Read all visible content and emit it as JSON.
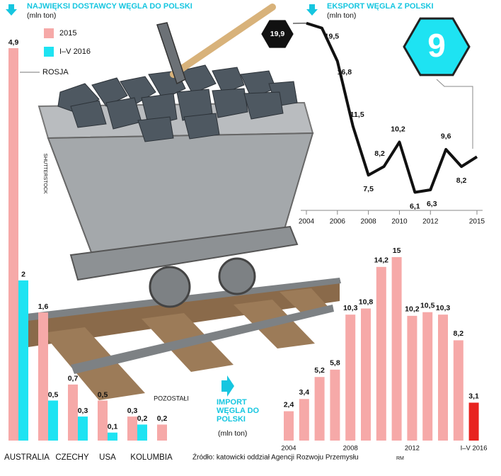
{
  "chart_data": [
    {
      "type": "grouped-bar",
      "title": "NAJWIĘKSI DOSTAWCY WĘGLA DO POLSKI",
      "subtitle": "(mln ton)",
      "categories": [
        "ROSJA",
        "AUSTRALIA",
        "CZECHY",
        "USA",
        "KOLUMBIA",
        "POZOSTAŁI"
      ],
      "series": [
        {
          "name": "2015",
          "color": "#f6a9a8",
          "values": [
            4.9,
            1.6,
            0.7,
            0.5,
            0.3,
            0.2
          ],
          "value_labels": [
            "4,9",
            "1,6",
            "0,7",
            "0,5",
            "0,3",
            "0,2"
          ]
        },
        {
          "name": "I–V 2016",
          "color": "#1ee3f2",
          "values": [
            2,
            0.5,
            0.3,
            0.1,
            0.2,
            null
          ],
          "value_labels": [
            "2",
            "0,5",
            "0,3",
            "0,1",
            "0,2",
            null
          ]
        }
      ]
    },
    {
      "type": "line",
      "title": "EKSPORT WĘGLA Z POLSKI",
      "subtitle": "(mln ton)",
      "x": [
        2004,
        2005,
        2006,
        2007,
        2008,
        2009,
        2010,
        2011,
        2012,
        2013,
        2014,
        2015
      ],
      "values": [
        19.9,
        19.5,
        16.8,
        11.5,
        7.5,
        8.2,
        10.2,
        6.1,
        6.3,
        9.6,
        8.2,
        9
      ],
      "value_labels": [
        "19,9",
        "19,5",
        "16,8",
        "11,5",
        "7,5",
        "8,2",
        "10,2",
        "6,1",
        "6,3",
        "9,6",
        "8,2",
        "9"
      ],
      "color": "#111111",
      "xlim": [
        2004,
        2015
      ],
      "xticks": [
        2004,
        2006,
        2008,
        2010,
        2012,
        2015
      ],
      "ylim": [
        5,
        20
      ]
    },
    {
      "type": "bar",
      "title": "IMPORT WĘGLA DO POLSKI",
      "subtitle": "(mln ton)",
      "categories": [
        "2004",
        null,
        null,
        null,
        "2008",
        null,
        null,
        null,
        "2012",
        null,
        null,
        null,
        "I–V 2016"
      ],
      "values": [
        2.4,
        3.4,
        5.2,
        5.8,
        10.3,
        10.8,
        14.2,
        15,
        10.2,
        10.5,
        10.3,
        8.2,
        3.1
      ],
      "value_labels": [
        "2,4",
        "3,4",
        "5,2",
        "5,8",
        "10,3",
        "10,8",
        "14,2",
        "15",
        "10,2",
        "10,5",
        "10,3",
        "8,2",
        "3,1"
      ],
      "colors": [
        "#f6a9a8",
        "#f6a9a8",
        "#f6a9a8",
        "#f6a9a8",
        "#f6a9a8",
        "#f6a9a8",
        "#f6a9a8",
        "#f6a9a8",
        "#f6a9a8",
        "#f6a9a8",
        "#f6a9a8",
        "#f6a9a8",
        "#e8231f"
      ]
    }
  ],
  "source": "Źródło: katowicki oddział Agencji Rozwoju Przemysłu",
  "author": "RM",
  "credit": "SHUTTERSTOCK"
}
